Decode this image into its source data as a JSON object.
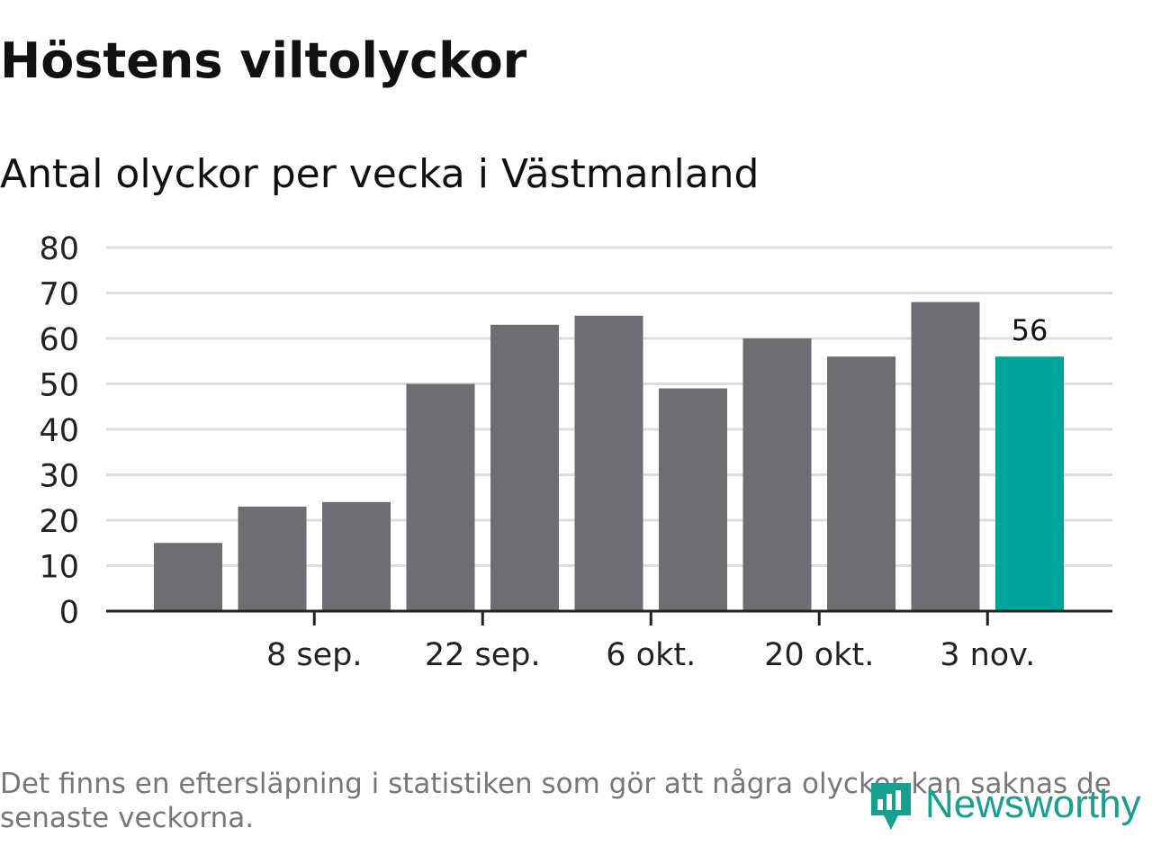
{
  "title": "Höstens viltolyckor",
  "subtitle": "Antal olyckor per vecka i Västmanland",
  "footnote": "Det finns en eftersläpning i statistiken som gör att några olyckor kan saknas de senaste veckorna.",
  "brand": {
    "name": "Newsworthy",
    "icon": "newsworthy-logo-icon",
    "color": "#17a08f"
  },
  "colors": {
    "bar": "#6e6d73",
    "highlight": "#00a499",
    "grid": "#dddddd",
    "axis": "#222222"
  },
  "chart_data": {
    "type": "bar",
    "x_tick_labels": [
      "8 sep.",
      "22 sep.",
      "6 okt.",
      "20 okt.",
      "3 nov."
    ],
    "x_tick_after_bar": [
      1,
      3,
      5,
      7,
      9
    ],
    "values": [
      15,
      23,
      24,
      50,
      63,
      65,
      49,
      60,
      56,
      68,
      56
    ],
    "highlight_index": 10,
    "highlight_label": "56",
    "ylim": [
      0,
      80
    ],
    "yticks": [
      0,
      10,
      20,
      30,
      40,
      50,
      60,
      70,
      80
    ],
    "grid": true,
    "legend": "none"
  }
}
